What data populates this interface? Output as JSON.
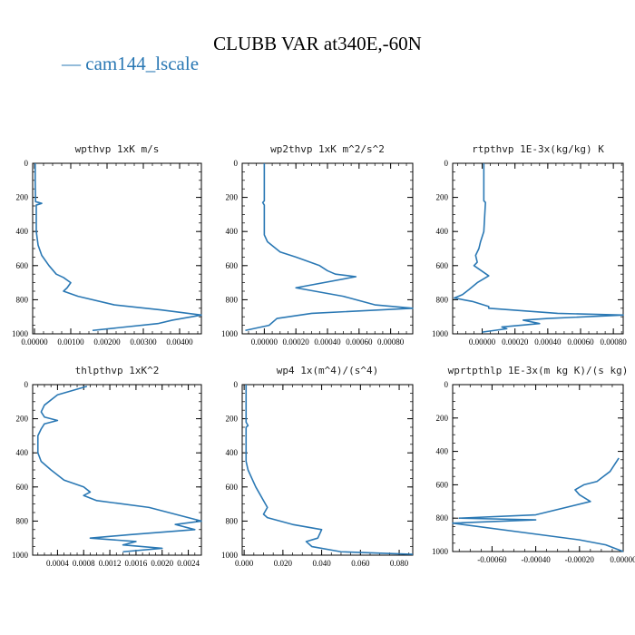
{
  "figure": {
    "title": "CLUBB VAR at340E,-60N",
    "legend": {
      "symbol": "—",
      "label": "cam144_lscale",
      "color": "#2a78b4"
    }
  },
  "chart_data": [
    {
      "type": "line",
      "title": "wpthvp   1xK m/s",
      "xlim": [
        -5e-05,
        0.0046
      ],
      "ylim": [
        1000,
        0
      ],
      "xticks": [
        {
          "v": 0,
          "t": "0.00000"
        },
        {
          "v": 0.001,
          "t": "0.00100"
        },
        {
          "v": 0.002,
          "t": "0.00200"
        },
        {
          "v": 0.003,
          "t": "0.00300"
        },
        {
          "v": 0.004,
          "t": "0.00400"
        }
      ],
      "yticks": [
        {
          "v": 0,
          "t": "0"
        },
        {
          "v": 200,
          "t": "200"
        },
        {
          "v": 400,
          "t": "400"
        },
        {
          "v": 600,
          "t": "600"
        },
        {
          "v": 800,
          "t": "800"
        },
        {
          "v": 1000,
          "t": "1000"
        }
      ],
      "series": [
        {
          "name": "cam144_lscale",
          "x": [
            2e-05,
            2e-05,
            3e-05,
            0.0002,
            5e-05,
            5e-05,
            0.0001,
            0.0002,
            0.0004,
            0.0006,
            0.0008,
            0.001,
            0.0009,
            0.0008,
            0.0012,
            0.0022,
            0.0035,
            0.0046,
            0.0038,
            0.0034,
            0.0016
          ],
          "y": [
            0,
            100,
            225,
            235,
            245,
            400,
            480,
            540,
            600,
            650,
            670,
            700,
            730,
            750,
            780,
            830,
            860,
            890,
            920,
            940,
            980
          ]
        }
      ]
    },
    {
      "type": "line",
      "title": "wp2thvp   1xK m^2/s^2",
      "xlim": [
        -0.00014,
        0.00094
      ],
      "ylim": [
        1000,
        0
      ],
      "xticks": [
        {
          "v": 0,
          "t": "0.00000"
        },
        {
          "v": 0.0002,
          "t": "0.00020"
        },
        {
          "v": 0.0004,
          "t": "0.00040"
        },
        {
          "v": 0.0006,
          "t": "0.00060"
        },
        {
          "v": 0.0008,
          "t": "0.00080"
        }
      ],
      "yticks": [
        {
          "v": 0,
          "t": "0"
        },
        {
          "v": 200,
          "t": "200"
        },
        {
          "v": 400,
          "t": "400"
        },
        {
          "v": 600,
          "t": "600"
        },
        {
          "v": 800,
          "t": "800"
        },
        {
          "v": 1000,
          "t": "1000"
        }
      ],
      "series": [
        {
          "name": "cam144_lscale",
          "x": [
            0.0,
            0.0,
            -1e-05,
            0.0,
            0.0,
            2e-05,
            0.0001,
            0.0002,
            0.00035,
            0.0004,
            0.00045,
            0.00058,
            0.0002,
            0.0005,
            0.0007,
            0.00094,
            0.0003,
            8e-05,
            3e-05,
            -0.00012
          ],
          "y": [
            0,
            220,
            230,
            245,
            420,
            460,
            520,
            550,
            600,
            630,
            650,
            665,
            730,
            780,
            830,
            850,
            880,
            910,
            950,
            980
          ]
        }
      ]
    },
    {
      "type": "line",
      "title": "rtpthvp   1E-3x(kg/kg) K",
      "xlim": [
        -0.00018,
        0.00086
      ],
      "ylim": [
        1000,
        0
      ],
      "xticks": [
        {
          "v": 0,
          "t": "0.00000"
        },
        {
          "v": 0.0002,
          "t": "0.00020"
        },
        {
          "v": 0.0004,
          "t": "0.00040"
        },
        {
          "v": 0.0006,
          "t": "0.00060"
        },
        {
          "v": 0.0008,
          "t": "0.00080"
        }
      ],
      "yticks": [
        {
          "v": 0,
          "t": "0"
        },
        {
          "v": 200,
          "t": "200"
        },
        {
          "v": 400,
          "t": "400"
        },
        {
          "v": 600,
          "t": "600"
        },
        {
          "v": 800,
          "t": "800"
        },
        {
          "v": 1000,
          "t": "1000"
        }
      ],
      "series": [
        {
          "name": "cam144_lscale",
          "x": [
            1e-05,
            1e-05,
            2e-05,
            1e-05,
            -1e-05,
            -2e-05,
            -4e-05,
            -3e-05,
            -5e-05,
            -2e-05,
            4e-05,
            -3e-05,
            -8e-05,
            -0.00012,
            -0.00017,
            -6e-05,
            4e-05,
            4e-05,
            0.00046,
            0.00086,
            0.0004,
            0.00025,
            0.00035,
            0.00012,
            0.00015,
            0.0
          ],
          "y": [
            0,
            220,
            230,
            400,
            460,
            500,
            540,
            580,
            600,
            620,
            660,
            700,
            740,
            770,
            790,
            810,
            840,
            850,
            880,
            890,
            910,
            920,
            940,
            960,
            970,
            990
          ]
        }
      ]
    },
    {
      "type": "line",
      "title": "thlpthvp   1xK^2",
      "xlim": [
        2e-05,
        0.0026
      ],
      "ylim": [
        1000,
        0
      ],
      "xticks": [
        {
          "v": 0.0004,
          "t": "0.0004"
        },
        {
          "v": 0.0008,
          "t": "0.0008"
        },
        {
          "v": 0.0012,
          "t": "0.0012"
        },
        {
          "v": 0.0016,
          "t": "0.0016"
        },
        {
          "v": 0.002,
          "t": "0.0020"
        },
        {
          "v": 0.0024,
          "t": "0.0024"
        }
      ],
      "yticks": [
        {
          "v": 0,
          "t": "0"
        },
        {
          "v": 200,
          "t": "200"
        },
        {
          "v": 400,
          "t": "400"
        },
        {
          "v": 600,
          "t": "600"
        },
        {
          "v": 800,
          "t": "800"
        },
        {
          "v": 1000,
          "t": "1000"
        }
      ],
      "series": [
        {
          "name": "cam144_lscale",
          "x": [
            0.00085,
            0.0004,
            0.0002,
            0.00015,
            0.0002,
            0.0004,
            0.0002,
            0.00015,
            0.0001,
            0.0001,
            0.00015,
            0.0003,
            0.0005,
            0.0008,
            0.0009,
            0.0008,
            0.001,
            0.0018,
            0.0026,
            0.0022,
            0.0025,
            0.0015,
            0.0009,
            0.0016,
            0.0014,
            0.002,
            0.0014
          ],
          "y": [
            10,
            60,
            120,
            160,
            190,
            210,
            230,
            260,
            300,
            400,
            450,
            500,
            560,
            600,
            630,
            650,
            680,
            720,
            800,
            820,
            850,
            880,
            900,
            920,
            940,
            960,
            980
          ]
        }
      ]
    },
    {
      "type": "line",
      "title": "wp4   1x(m^4)/(s^4)",
      "xlim": [
        -0.001,
        0.087
      ],
      "ylim": [
        1000,
        0
      ],
      "xticks": [
        {
          "v": 0,
          "t": "0.000"
        },
        {
          "v": 0.02,
          "t": "0.020"
        },
        {
          "v": 0.04,
          "t": "0.040"
        },
        {
          "v": 0.06,
          "t": "0.060"
        },
        {
          "v": 0.08,
          "t": "0.080"
        }
      ],
      "yticks": [
        {
          "v": 0,
          "t": "0"
        },
        {
          "v": 200,
          "t": "200"
        },
        {
          "v": 400,
          "t": "400"
        },
        {
          "v": 600,
          "t": "600"
        },
        {
          "v": 800,
          "t": "800"
        },
        {
          "v": 1000,
          "t": "1000"
        }
      ],
      "series": [
        {
          "name": "cam144_lscale",
          "x": [
            0.001,
            0.001,
            0.002,
            0.001,
            0.001,
            0.002,
            0.004,
            0.006,
            0.008,
            0.01,
            0.012,
            0.01,
            0.012,
            0.025,
            0.04,
            0.038,
            0.032,
            0.035,
            0.05,
            0.087
          ],
          "y": [
            0,
            220,
            240,
            250,
            450,
            500,
            550,
            600,
            640,
            680,
            720,
            760,
            780,
            820,
            850,
            900,
            920,
            950,
            980,
            995
          ]
        }
      ]
    },
    {
      "type": "line",
      "title": "wprtpthlp   1E-3x(m kg K)/(s kg)",
      "xlim": [
        -0.00078,
        0.0
      ],
      "ylim": [
        1000,
        0
      ],
      "xticks": [
        {
          "v": -0.0006,
          "t": "-0.00060"
        },
        {
          "v": -0.0004,
          "t": "-0.00040"
        },
        {
          "v": -0.0002,
          "t": "-0.00020"
        },
        {
          "v": 0,
          "t": "0.00000"
        }
      ],
      "yticks": [
        {
          "v": 0,
          "t": "0"
        },
        {
          "v": 200,
          "t": "200"
        },
        {
          "v": 400,
          "t": "400"
        },
        {
          "v": 600,
          "t": "600"
        },
        {
          "v": 800,
          "t": "800"
        },
        {
          "v": 1000,
          "t": "1000"
        }
      ],
      "series": [
        {
          "name": "cam144_lscale",
          "x": [
            -2e-05,
            -4e-05,
            -6e-05,
            -0.0001,
            -0.00012,
            -0.00018,
            -0.00022,
            -0.0002,
            -0.00015,
            -0.0004,
            -0.00075,
            -0.0004,
            -0.00078,
            -0.0002,
            -8e-05,
            0.0
          ],
          "y": [
            440,
            480,
            520,
            560,
            580,
            600,
            630,
            660,
            700,
            780,
            800,
            810,
            830,
            930,
            960,
            1000
          ]
        }
      ]
    }
  ]
}
